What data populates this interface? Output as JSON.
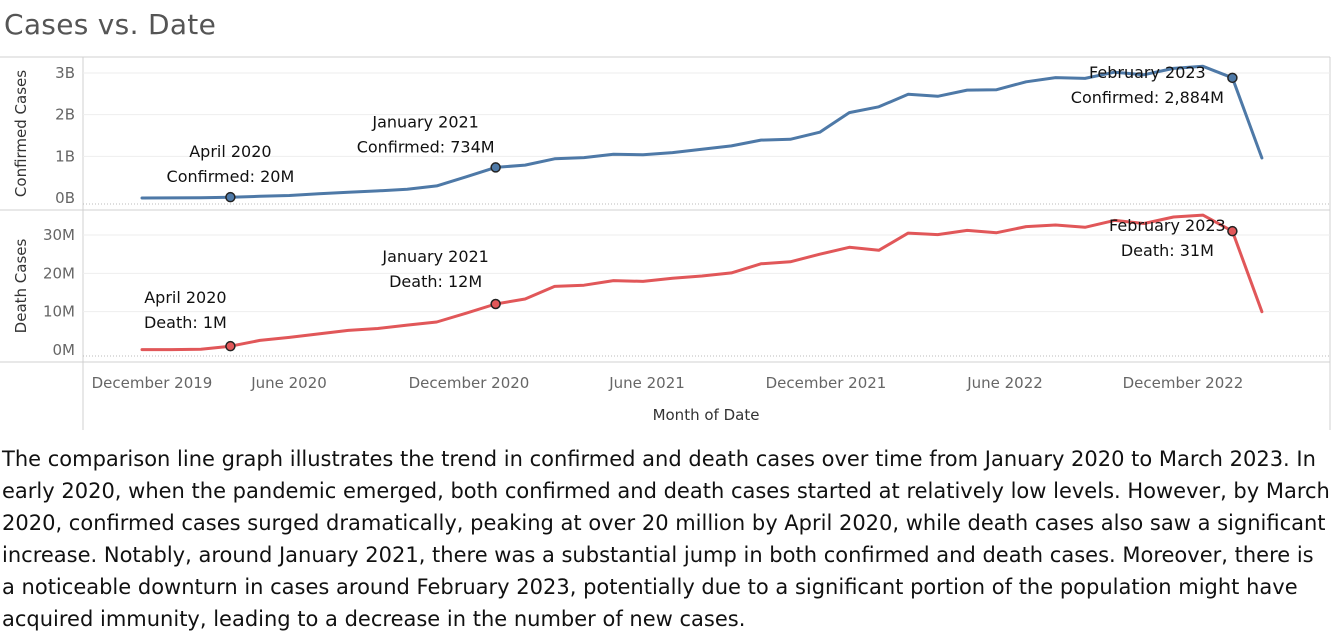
{
  "title": "Cases vs. Date",
  "description": "The comparison line graph illustrates the trend in confirmed and death cases over time from January 2020 to March 2023. In early 2020, when the pandemic emerged, both confirmed and death cases started at relatively low levels. However, by March 2020, confirmed cases surged dramatically, peaking at over 20 million by April 2020, while death cases also saw a significant increase. Notably, around January 2021, there was a substantial jump in both confirmed and death cases. Moreover, there is a noticeable downturn in cases around February 2023, potentially due to a significant portion of the population might have acquired immunity, leading to a decrease in the number of new cases.",
  "colors": {
    "confirmed": "#4e79a7",
    "death": "#e15759"
  },
  "chart_data": {
    "type": "line",
    "title": "Cases vs. Date",
    "xlabel": "Month of Date",
    "x_ticks": [
      "December 2019",
      "June 2020",
      "December 2020",
      "June 2021",
      "December 2021",
      "June 2022",
      "December 2022"
    ],
    "x": [
      "2020-01",
      "2020-02",
      "2020-03",
      "2020-04",
      "2020-05",
      "2020-06",
      "2020-07",
      "2020-08",
      "2020-09",
      "2020-10",
      "2020-11",
      "2020-12",
      "2021-01",
      "2021-02",
      "2021-03",
      "2021-04",
      "2021-05",
      "2021-06",
      "2021-07",
      "2021-08",
      "2021-09",
      "2021-10",
      "2021-11",
      "2021-12",
      "2022-01",
      "2022-02",
      "2022-03",
      "2022-04",
      "2022-05",
      "2022-06",
      "2022-07",
      "2022-08",
      "2022-09",
      "2022-10",
      "2022-11",
      "2022-12",
      "2023-01",
      "2023-02",
      "2023-03"
    ],
    "panels": [
      {
        "name": "Confirmed Cases",
        "ylabel": "Confirmed Cases",
        "ylim": [
          0,
          3200000000
        ],
        "yticks": [
          0,
          1000000000,
          2000000000,
          3000000000
        ],
        "ytick_labels": [
          "0B",
          "1B",
          "2B",
          "3B"
        ],
        "color": "#4e79a7",
        "values": [
          1,
          3,
          5,
          20,
          40,
          60,
          100,
          140,
          170,
          210,
          290,
          510,
          734,
          790,
          940,
          970,
          1050,
          1040,
          1090,
          1170,
          1250,
          1390,
          1410,
          1580,
          2050,
          2190,
          2490,
          2440,
          2590,
          2600,
          2790,
          2890,
          2870,
          3020,
          2960,
          3110,
          3160,
          2884,
          960
        ],
        "annotations": [
          {
            "x": "2020-04",
            "lines": [
              "April 2020",
              "Confirmed: 20M"
            ]
          },
          {
            "x": "2021-01",
            "lines": [
              "January 2021",
              "Confirmed: 734M"
            ]
          },
          {
            "x": "2023-02",
            "lines": [
              "February 2023",
              "Confirmed: 2,884M"
            ]
          }
        ]
      },
      {
        "name": "Death Cases",
        "ylabel": "Death Cases",
        "ylim": [
          -1500000,
          35000000
        ],
        "yticks": [
          0,
          10000000,
          20000000,
          30000000
        ],
        "ytick_labels": [
          "0M",
          "10M",
          "20M",
          "30M"
        ],
        "color": "#e15759",
        "values": [
          0.1,
          0.1,
          0.2,
          1,
          2.5,
          3.3,
          4.2,
          5.1,
          5.6,
          6.5,
          7.3,
          9.6,
          12,
          13.3,
          16.6,
          16.9,
          18.1,
          17.9,
          18.7,
          19.3,
          20.1,
          22.5,
          23,
          25,
          26.8,
          26,
          30.5,
          30.1,
          31.2,
          30.6,
          32.2,
          32.6,
          32,
          33.8,
          33,
          34.7,
          35.2,
          31,
          10
        ],
        "annotations": [
          {
            "x": "2020-04",
            "lines": [
              "April 2020",
              "Death: 1M"
            ]
          },
          {
            "x": "2021-01",
            "lines": [
              "January 2021",
              "Death: 12M"
            ]
          },
          {
            "x": "2023-02",
            "lines": [
              "February 2023",
              "Death: 31M"
            ]
          }
        ]
      }
    ]
  }
}
